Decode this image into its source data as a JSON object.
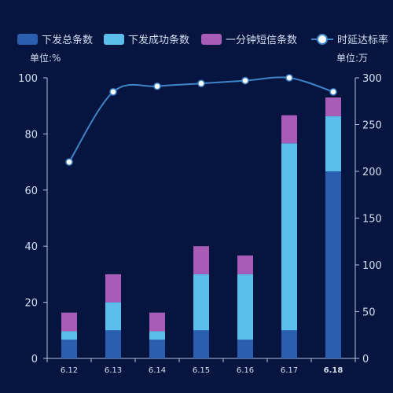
{
  "chart_data": {
    "type": "bar+line",
    "title": "",
    "categories": [
      "6.12",
      "6.13",
      "6.14",
      "6.15",
      "6.16",
      "6.17",
      "6.18"
    ],
    "highlight_category": "6.18",
    "stacked_series": [
      {
        "name": "下发总条数",
        "color": "#2a5fb0",
        "values": [
          20,
          30,
          20,
          30,
          20,
          30,
          200
        ]
      },
      {
        "name": "下发成功条数",
        "color": "#5bbde9",
        "values": [
          9,
          30,
          9,
          60,
          70,
          200,
          59
        ]
      },
      {
        "name": "一分钟短信条数",
        "color": "#a85cb7",
        "values": [
          20,
          30,
          20,
          30,
          20,
          30,
          20
        ]
      }
    ],
    "line_series": {
      "name": "时延达标率",
      "color": "#3d84c9",
      "values": [
        70,
        95,
        97,
        98,
        99,
        100,
        95
      ]
    },
    "y_left": {
      "unit_label": "单位:%",
      "min": 0,
      "max": 100,
      "ticks": [
        0,
        20,
        40,
        60,
        80,
        100
      ]
    },
    "y_right": {
      "unit_label": "单位:万",
      "min": 0,
      "max": 300,
      "ticks": [
        0,
        50,
        100,
        150,
        200,
        250,
        300
      ]
    },
    "legend_position": "top",
    "grid": false
  }
}
